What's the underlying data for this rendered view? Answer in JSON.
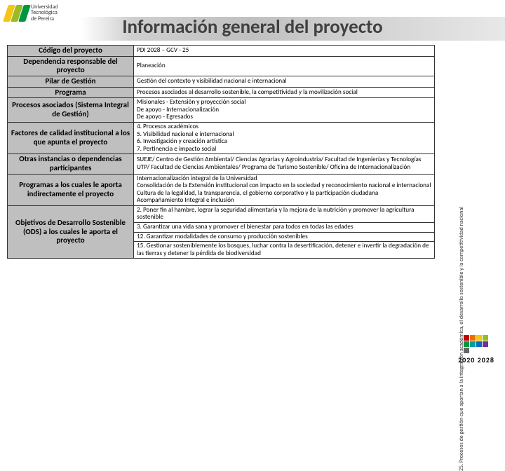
{
  "logo": {
    "name_line1": "Universidad",
    "name_line2": "Tecnológica",
    "name_line3": "de Pereira",
    "bar_colors": [
      "#f5c518",
      "#9bbb25",
      "#009640"
    ]
  },
  "title": "Información general del proyecto",
  "rows": [
    {
      "label": "Código del proyecto",
      "value": "PDI 2028 – GCV - 25"
    },
    {
      "label": "Dependencia responsable del proyecto",
      "value": "Planeación"
    },
    {
      "label": "Pilar de Gestión",
      "value": "Gestión del contexto y visibilidad nacional e internacional"
    },
    {
      "label": "Programa",
      "value": "Procesos asociados al desarrollo sostenible, la competitividad y la movilización social"
    },
    {
      "label": "Procesos asociados (Sistema Integral de Gestión)",
      "value": "Misionales - Extensión y proyección social\nDe apoyo - Internacionalización\nDe apoyo - Egresados"
    },
    {
      "label": "Factores de calidad institucional a los que apunta el proyecto",
      "value": "4. Procesos académicos\n5. Visibilidad  nacional e internacional\n6. Investigación y creación artística\n7. Pertinencia e impacto social"
    },
    {
      "label": "Otras instancias o dependencias participantes",
      "value": "SUEJE/ Centro de Gestión Ambiental/ Ciencias Agrarias y Agroindustria/ Facultad de Ingenierías y Tecnologías UTP/ Facultad de Ciencias Ambientales/ Programa de Turismo Sostenible/ Oficina de Internacionalización"
    },
    {
      "label": "Programas a los cuales le aporta indirectamente el proyecto",
      "value": "Internacionalización integral de la Universidad\nConsolidación de la Extensión institucional con impacto en la sociedad y reconocimiento nacional e internacional\nCultura de la legalidad, la transparencia, el gobierno corporativo y la participación ciudadana\nAcompañamiento Integral e inclusión"
    },
    {
      "label": "Objetivos de Desarrollo Sostenible (ODS) a los cuales le aporta el proyecto",
      "multi": [
        "2. Poner fin al hambre, lograr la seguridad alimentaria y la mejora de la nutrición y promover la agricultura sostenible",
        "3. Garantizar una vida sana y promover el bienestar para todos en todas las edades",
        "12. Garantizar modalidades de consumo y producción sostenibles",
        "15. Gestionar sosteniblemente los bosques, luchar contra la desertificación, detener e invertir la degradación de las tierras y detener la pérdida de biodiversidad"
      ]
    }
  ],
  "side_caption": "25. Procesos de gestión que aportan a la integración académica, el desarrollo sostenible y la competitividad nacional",
  "br_logo": {
    "colors": [
      "#c00000",
      "#e97000",
      "#f5c518",
      "#9bbb25",
      "#009640",
      "#00a0a0",
      "#0070c0",
      "#7030a0",
      "#666666"
    ],
    "years": "2020  2028"
  },
  "colors": {
    "header_bg": "#bfbfbf",
    "border": "#333333",
    "title": "#404040"
  }
}
